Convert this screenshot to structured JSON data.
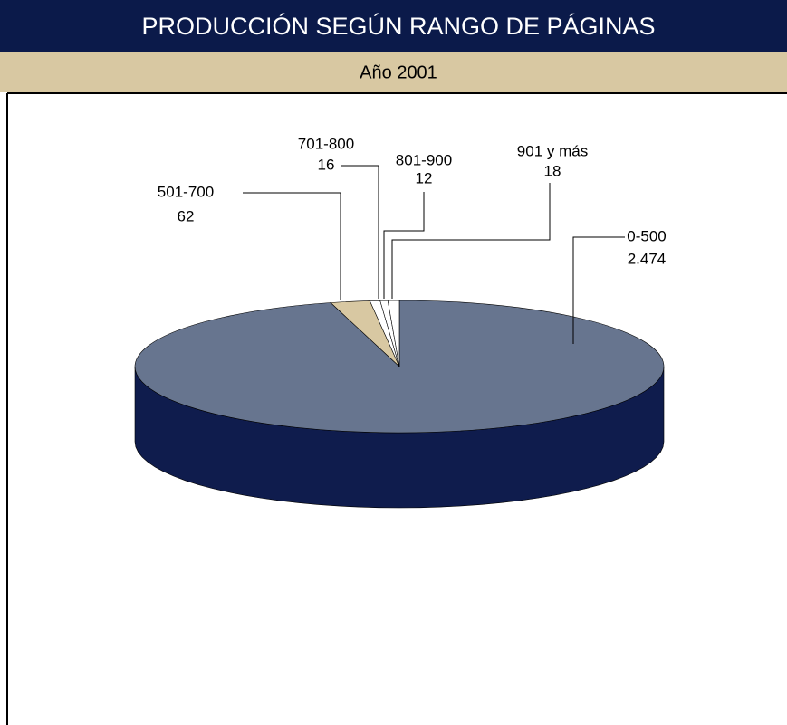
{
  "chart_data": {
    "type": "pie",
    "title": "PRODUCCIÓN SEGÚN RANGO DE PÁGINAS",
    "subtitle": "Año 2001",
    "categories": [
      "0-500",
      "501-700",
      "701-800",
      "801-900",
      "901 y más"
    ],
    "values": [
      2474,
      62,
      16,
      12,
      18
    ],
    "value_labels": [
      "2.474",
      "62",
      "16",
      "12",
      "18"
    ],
    "colors": [
      "#67758f",
      "#d8c8a2",
      "#ffffff",
      "#ffffff",
      "#ffffff"
    ]
  }
}
